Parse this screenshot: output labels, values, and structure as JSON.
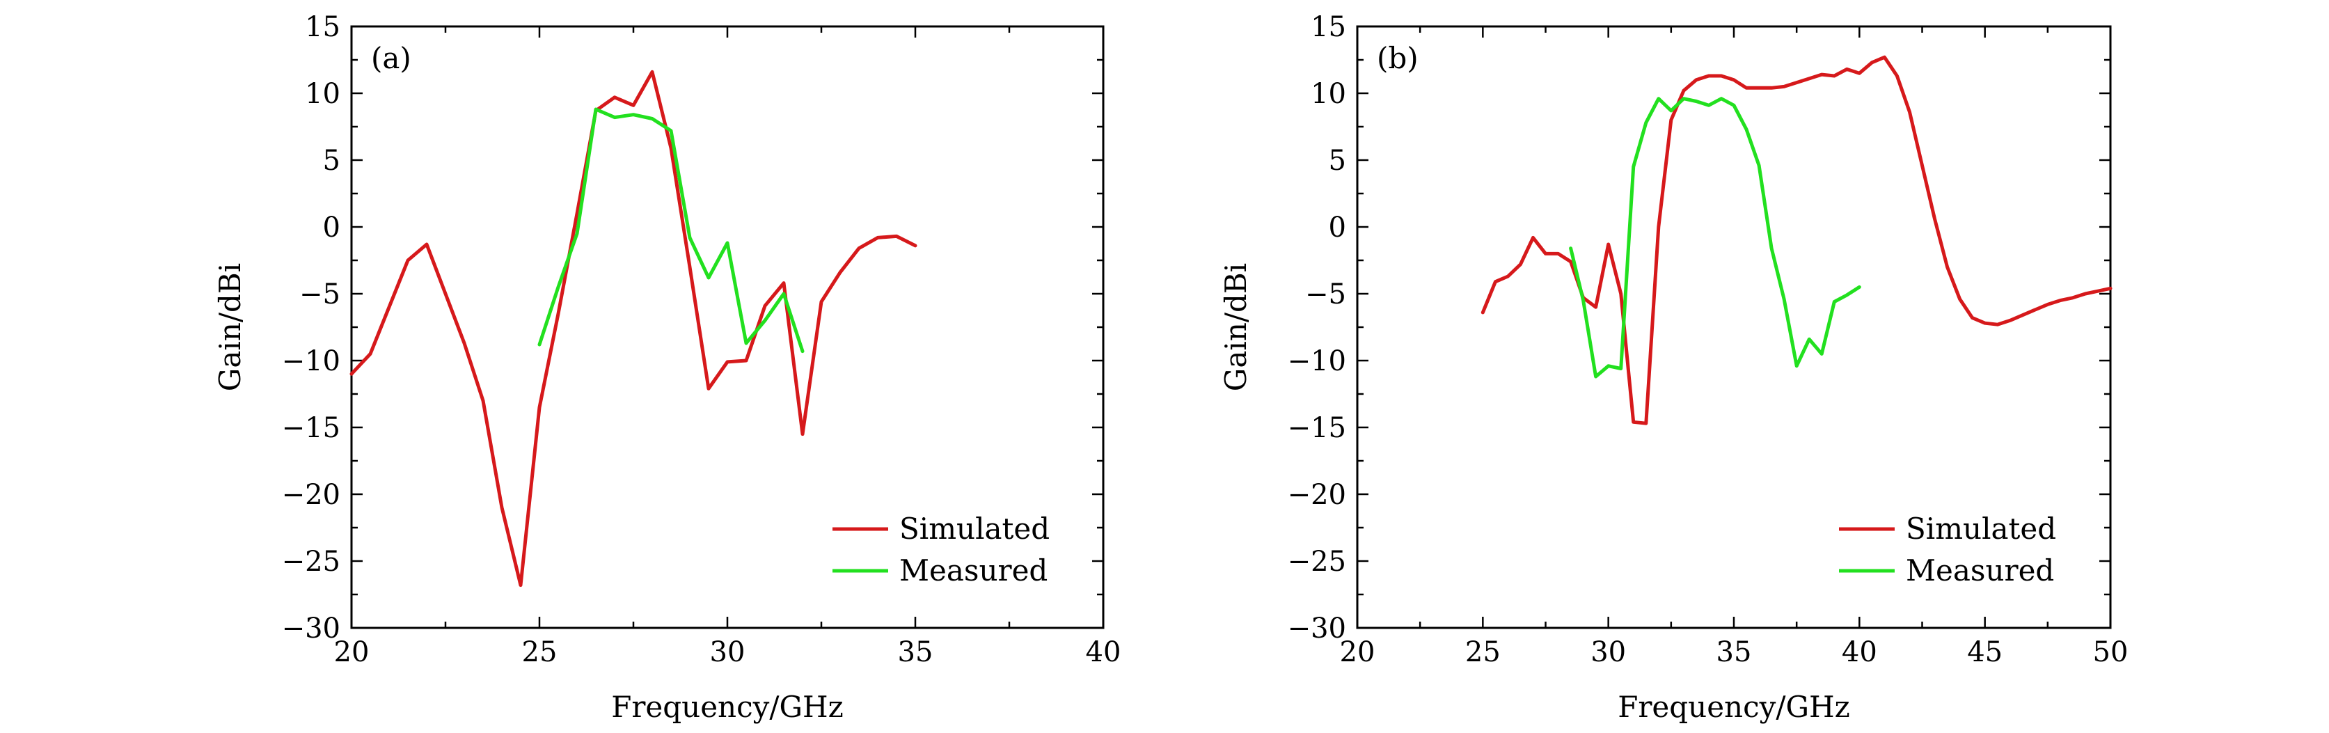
{
  "chart_data": [
    {
      "type": "line",
      "panel_label": "(a)",
      "xlabel": "Frequency/GHz",
      "ylabel": "Gain/dBi",
      "xlim": [
        20,
        40
      ],
      "ylim": [
        -30,
        15
      ],
      "xticks": [
        20,
        25,
        30,
        35,
        40
      ],
      "yticks": [
        15,
        10,
        5,
        0,
        -5,
        -10,
        -15,
        -20,
        -25,
        -30
      ],
      "xtick_labels": [
        "20",
        "25",
        "30",
        "35",
        "40"
      ],
      "ytick_labels": [
        "15",
        "10",
        "5",
        "0",
        "−5",
        "−10",
        "−15",
        "−20",
        "−25",
        "−30"
      ],
      "legend_position": "bottom-right",
      "series": [
        {
          "name": "Simulated",
          "color": "#d6191b",
          "x": [
            20,
            20.5,
            21,
            21.5,
            22,
            22.5,
            23,
            23.5,
            24,
            24.5,
            25,
            25.5,
            26,
            26.5,
            27,
            27.5,
            28,
            28.5,
            29,
            29.5,
            30,
            30.5,
            31,
            31.5,
            32,
            32.5,
            33,
            33.5,
            34,
            34.5,
            35
          ],
          "y": [
            -11,
            -9.5,
            -6,
            -2.5,
            -1.3,
            -5,
            -8.7,
            -13,
            -21,
            -26.8,
            -13.5,
            -6.5,
            1,
            8.7,
            9.7,
            9.1,
            11.6,
            5.9,
            -3,
            -12.1,
            -10.1,
            -10,
            -5.9,
            -4.2,
            -15.5,
            -5.6,
            -3.4,
            -1.6,
            -0.8,
            -0.7,
            -1.4
          ]
        },
        {
          "name": "Measured",
          "color": "#22e01f",
          "x": [
            25,
            25.5,
            26,
            26.5,
            27,
            27.5,
            28,
            28.5,
            29,
            29.5,
            30,
            30.5,
            31,
            31.5,
            32
          ],
          "y": [
            -8.8,
            -4.5,
            -0.5,
            8.8,
            8.2,
            8.4,
            8.1,
            7.2,
            -0.8,
            -3.8,
            -1.2,
            -8.7,
            -7,
            -5,
            -9.3
          ]
        }
      ]
    },
    {
      "type": "line",
      "panel_label": "(b)",
      "xlabel": "Frequency/GHz",
      "ylabel": "Gain/dBi",
      "xlim": [
        20,
        50
      ],
      "ylim": [
        -30,
        15
      ],
      "xticks": [
        20,
        25,
        30,
        35,
        40,
        45,
        50
      ],
      "yticks": [
        15,
        10,
        5,
        0,
        -5,
        -10,
        -15,
        -20,
        -25,
        -30
      ],
      "xtick_labels": [
        "20",
        "25",
        "30",
        "35",
        "40",
        "45",
        "50"
      ],
      "ytick_labels": [
        "15",
        "10",
        "5",
        "0",
        "−5",
        "−10",
        "−15",
        "−20",
        "−25",
        "−30"
      ],
      "legend_position": "bottom-right",
      "series": [
        {
          "name": "Simulated",
          "color": "#d6191b",
          "x": [
            25,
            25.5,
            26,
            26.5,
            27,
            27.5,
            28,
            28.5,
            29,
            29.5,
            30,
            30.5,
            31,
            31.5,
            32,
            32.5,
            33,
            33.5,
            34,
            34.5,
            35,
            35.5,
            36,
            36.5,
            37,
            37.5,
            38,
            38.5,
            39,
            39.5,
            40,
            40.5,
            41,
            41.5,
            42,
            42.5,
            43,
            43.5,
            44,
            44.5,
            45,
            45.5,
            46,
            46.5,
            47,
            47.5,
            48,
            48.5,
            49,
            49.5,
            50
          ],
          "y": [
            -6.4,
            -4.1,
            -3.7,
            -2.8,
            -0.8,
            -2,
            -2,
            -2.6,
            -5.3,
            -6,
            -1.3,
            -5,
            -14.6,
            -14.7,
            0,
            8,
            10.2,
            11,
            11.3,
            11.3,
            11,
            10.4,
            10.4,
            10.4,
            10.5,
            10.8,
            11.1,
            11.4,
            11.3,
            11.8,
            11.5,
            12.3,
            12.7,
            11.3,
            8.6,
            4.6,
            0.6,
            -3,
            -5.4,
            -6.8,
            -7.2,
            -7.3,
            -7,
            -6.6,
            -6.2,
            -5.8,
            -5.5,
            -5.3,
            -5,
            -4.8,
            -4.6
          ]
        },
        {
          "name": "Measured",
          "color": "#22e01f",
          "x": [
            28.5,
            29,
            29.5,
            30,
            30.5,
            31,
            31.5,
            32,
            32.5,
            33,
            33.5,
            34,
            34.5,
            35,
            35.5,
            36,
            36.5,
            37,
            37.5,
            38,
            38.5,
            39,
            39.5,
            40
          ],
          "y": [
            -1.6,
            -5.5,
            -11.2,
            -10.4,
            -10.6,
            4.5,
            7.8,
            9.6,
            8.7,
            9.6,
            9.4,
            9.1,
            9.6,
            9.1,
            7.3,
            4.6,
            -1.6,
            -5.4,
            -10.4,
            -8.4,
            -9.5,
            -5.6,
            -5.1,
            -4.5
          ]
        }
      ]
    }
  ]
}
